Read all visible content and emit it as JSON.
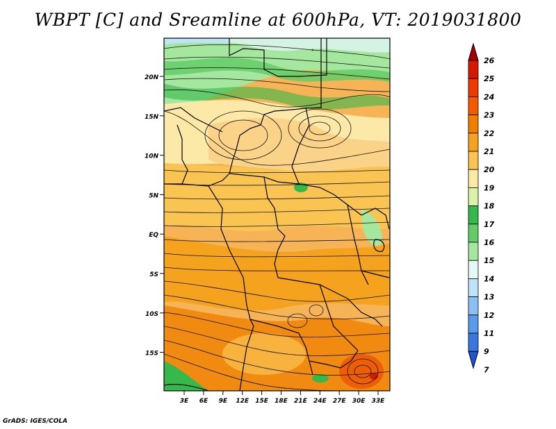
{
  "title": "WBPT [C] and Sreamline at 600hPa, VT: 2019031800",
  "credit": "GrADS: IGES/COLA",
  "map": {
    "lat_labels": [
      "20N",
      "15N",
      "10N",
      "5N",
      "EQ",
      "5S",
      "10S",
      "15S"
    ],
    "lon_labels": [
      "3E",
      "6E",
      "9E",
      "12E",
      "15E",
      "18E",
      "21E",
      "24E",
      "27E",
      "30E",
      "33E"
    ]
  },
  "colorbar": {
    "labels": [
      "26",
      "25",
      "24",
      "23",
      "22",
      "21",
      "20",
      "19",
      "18",
      "17",
      "16",
      "15",
      "14",
      "13",
      "12",
      "11",
      "9",
      "7"
    ],
    "colors": [
      "#a50000",
      "#d41a00",
      "#ec3a00",
      "#f45a00",
      "#f07f00",
      "#f5a21e",
      "#fac452",
      "#fce9a8",
      "#d9f3a8",
      "#37b84a",
      "#63cc66",
      "#a6e7a0",
      "#e4f8f4",
      "#bfe3fb",
      "#8ac0f2",
      "#5a9ae8",
      "#3b75de",
      "#1f55cf"
    ]
  }
}
